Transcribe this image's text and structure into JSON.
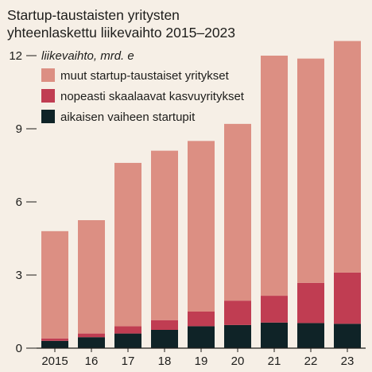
{
  "title_line1": "Startup-taustaisten yritysten",
  "title_line2": "yhteenlaskettu liikevaihto 2015–2023",
  "chart_data": {
    "type": "bar",
    "stacked": true,
    "title": "Startup-taustaisten yritysten yhteenlaskettu liikevaihto 2015–2023",
    "ylabel": "liikevaihto, mrd. e",
    "categories": [
      "2015",
      "16",
      "17",
      "18",
      "19",
      "20",
      "21",
      "22",
      "23"
    ],
    "ylim": [
      0,
      12.6
    ],
    "yticks": [
      0,
      3,
      6,
      9,
      12
    ],
    "grid": false,
    "legend_position": "top-left",
    "series": [
      {
        "name": "aikaisen vaiheen startupit",
        "color": "#0f2327",
        "values": [
          0.3,
          0.45,
          0.6,
          0.75,
          0.9,
          0.95,
          1.05,
          1.03,
          1.0
        ]
      },
      {
        "name": "nopeasti skaalaavat kasvuyritykset",
        "color": "#c03d52",
        "values": [
          0.1,
          0.15,
          0.3,
          0.4,
          0.6,
          1.0,
          1.1,
          1.65,
          2.1
        ]
      },
      {
        "name": "muut startup-taustaiset yritykset",
        "color": "#dc8f83",
        "values": [
          4.4,
          4.65,
          6.7,
          6.95,
          7.0,
          7.25,
          9.85,
          9.2,
          9.5
        ]
      }
    ],
    "legend_order": [
      2,
      1,
      0
    ]
  }
}
